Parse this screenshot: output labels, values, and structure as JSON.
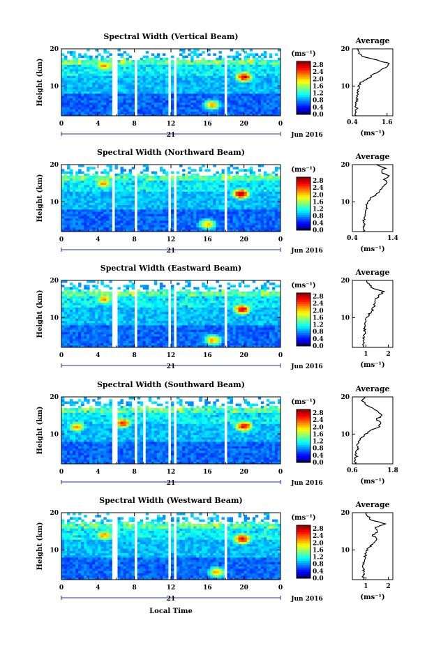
{
  "figure": {
    "date_label": "Jun 2016",
    "day_label": "21",
    "xlabel": "Local Time",
    "ylabel": "Height (km)",
    "unit_label": "(ms⁻¹)",
    "avg_title": "Average",
    "avg_xlabel": "(ms⁻¹)"
  },
  "chart_data": [
    {
      "type": "heatmap",
      "title": "Spectral Width (Vertical Beam)",
      "x_ticks": [
        "0",
        "4",
        "8",
        "12",
        "16",
        "20",
        "0"
      ],
      "xlim": [
        0,
        24
      ],
      "y_ticks": [
        "20",
        "10"
      ],
      "ylim": [
        2,
        20
      ],
      "colorbar": {
        "min": 0,
        "max": 3,
        "ticks": [
          "2.8",
          "2.4",
          "2.0",
          "1.6",
          "1.2",
          "0.8",
          "0.4",
          "0.0"
        ]
      },
      "gaps_hours": [
        [
          5.5,
          6.0
        ],
        [
          8.0,
          8.4
        ],
        [
          11.6,
          11.9
        ],
        [
          12.2,
          12.5
        ],
        [
          17.8,
          18.1
        ]
      ],
      "hotspots": [
        {
          "t": 20,
          "h": 12.5,
          "v": 2.6
        },
        {
          "t": 4.7,
          "h": 15.5,
          "v": 2.0
        },
        {
          "t": 16.5,
          "h": 5,
          "v": 1.9
        }
      ],
      "average": {
        "xlim": [
          0.4,
          1.8
        ],
        "x_ticks": [
          "0.4",
          "1.6"
        ],
        "y_ticks": [
          "20",
          "10"
        ],
        "height": [
          2,
          3,
          4,
          5,
          6,
          7,
          8,
          9,
          10,
          11,
          12,
          13,
          14,
          15,
          16,
          17,
          18,
          19,
          20
        ],
        "value": [
          0.52,
          0.5,
          0.55,
          0.5,
          0.54,
          0.58,
          0.56,
          0.6,
          0.62,
          0.7,
          0.95,
          1.1,
          1.35,
          1.55,
          1.7,
          1.25,
          0.75,
          0.6,
          0.55
        ]
      }
    },
    {
      "type": "heatmap",
      "title": "Spectral Width (Northward Beam)",
      "x_ticks": [
        "0",
        "4",
        "8",
        "12",
        "16",
        "20",
        "0"
      ],
      "xlim": [
        0,
        24
      ],
      "y_ticks": [
        "20",
        "10"
      ],
      "ylim": [
        2,
        20
      ],
      "colorbar": {
        "min": 0,
        "max": 3,
        "ticks": [
          "2.8",
          "2.4",
          "2.0",
          "1.6",
          "1.2",
          "0.8",
          "0.4",
          "0.0"
        ]
      },
      "gaps_hours": [
        [
          5.4,
          5.9
        ],
        [
          8.0,
          8.4
        ],
        [
          11.6,
          11.9
        ],
        [
          12.2,
          12.5
        ],
        [
          17.8,
          18.1
        ]
      ],
      "hotspots": [
        {
          "t": 19.7,
          "h": 12.2,
          "v": 2.8
        },
        {
          "t": 4.6,
          "h": 15,
          "v": 2.0
        },
        {
          "t": 16,
          "h": 4,
          "v": 1.9
        }
      ],
      "average": {
        "xlim": [
          0.4,
          1.4
        ],
        "x_ticks": [
          "0.4",
          "1.4"
        ],
        "y_ticks": [
          "20",
          "10"
        ],
        "height": [
          2,
          3,
          4,
          5,
          6,
          7,
          8,
          9,
          10,
          11,
          12,
          13,
          14,
          15,
          16,
          17,
          18,
          19,
          20
        ],
        "value": [
          0.68,
          0.66,
          0.7,
          0.68,
          0.72,
          0.7,
          0.74,
          0.76,
          0.78,
          0.86,
          1.0,
          1.08,
          1.15,
          1.25,
          1.2,
          1.3,
          1.1,
          1.2,
          1.0
        ]
      }
    },
    {
      "type": "heatmap",
      "title": "Spectral Width (Eastward Beam)",
      "x_ticks": [
        "0",
        "4",
        "8",
        "12",
        "16",
        "20",
        "0"
      ],
      "xlim": [
        0,
        24
      ],
      "y_ticks": [
        "20",
        "10"
      ],
      "ylim": [
        2,
        20
      ],
      "colorbar": {
        "min": 0,
        "max": 3,
        "ticks": [
          "2.8",
          "2.4",
          "2.0",
          "1.6",
          "1.2",
          "0.8",
          "0.4",
          "0.0"
        ]
      },
      "gaps_hours": [
        [
          5.5,
          6.0
        ],
        [
          8.0,
          8.4
        ],
        [
          11.6,
          11.9
        ],
        [
          12.2,
          12.5
        ],
        [
          17.8,
          18.1
        ]
      ],
      "hotspots": [
        {
          "t": 19.8,
          "h": 12.3,
          "v": 2.6
        },
        {
          "t": 4.7,
          "h": 15,
          "v": 2.0
        },
        {
          "t": 16.6,
          "h": 4,
          "v": 2.0
        }
      ],
      "average": {
        "xlim": [
          0.4,
          2.2
        ],
        "x_ticks": [
          "1",
          "2"
        ],
        "y_ticks": [
          "20",
          "10"
        ],
        "height": [
          2,
          3,
          4,
          5,
          6,
          7,
          8,
          9,
          10,
          11,
          12,
          13,
          14,
          15,
          16,
          17,
          18,
          19,
          20
        ],
        "value": [
          0.9,
          0.88,
          0.92,
          0.9,
          0.95,
          0.93,
          0.97,
          1.0,
          1.05,
          1.15,
          1.3,
          1.35,
          1.4,
          1.45,
          1.6,
          1.8,
          1.3,
          1.15,
          1.0
        ]
      }
    },
    {
      "type": "heatmap",
      "title": "Spectral Width (Southward Beam)",
      "x_ticks": [
        "0",
        "4",
        "8",
        "12",
        "16",
        "20",
        "0"
      ],
      "xlim": [
        0,
        24
      ],
      "y_ticks": [
        "20",
        "10"
      ],
      "ylim": [
        2,
        20
      ],
      "colorbar": {
        "min": 0,
        "max": 3,
        "ticks": [
          "2.8",
          "2.4",
          "2.0",
          "1.6",
          "1.2",
          "0.8",
          "0.4",
          "0.0"
        ]
      },
      "gaps_hours": [
        [
          5.5,
          6.0
        ],
        [
          8.0,
          8.4
        ],
        [
          8.9,
          9.2
        ],
        [
          11.6,
          11.9
        ],
        [
          12.2,
          12.5
        ],
        [
          17.8,
          18.1
        ]
      ],
      "hotspots": [
        {
          "t": 20,
          "h": 12.2,
          "v": 2.6
        },
        {
          "t": 6.7,
          "h": 13,
          "v": 2.4
        },
        {
          "t": 1.7,
          "h": 12,
          "v": 2.0
        }
      ],
      "average": {
        "xlim": [
          0.6,
          1.8
        ],
        "x_ticks": [
          "0.6",
          "1.8"
        ],
        "y_ticks": [
          "20",
          "10"
        ],
        "height": [
          2,
          3,
          4,
          5,
          6,
          7,
          8,
          9,
          10,
          11,
          12,
          13,
          14,
          15,
          16,
          17,
          18,
          19,
          20
        ],
        "value": [
          0.7,
          0.66,
          0.72,
          0.7,
          0.76,
          0.74,
          0.8,
          0.86,
          1.0,
          1.15,
          1.4,
          1.45,
          1.3,
          1.5,
          1.35,
          1.2,
          1.0,
          0.9,
          0.95
        ]
      }
    },
    {
      "type": "heatmap",
      "title": "Spectral Width (Westward Beam)",
      "x_ticks": [
        "0",
        "4",
        "8",
        "12",
        "16",
        "20",
        "0"
      ],
      "xlim": [
        0,
        24
      ],
      "y_ticks": [
        "20",
        "10"
      ],
      "ylim": [
        2,
        20
      ],
      "colorbar": {
        "min": 0,
        "max": 3,
        "ticks": [
          "2.8",
          "2.4",
          "2.0",
          "1.6",
          "1.2",
          "0.8",
          "0.4",
          "0.0"
        ]
      },
      "gaps_hours": [
        [
          5.5,
          6.0
        ],
        [
          8.0,
          8.4
        ],
        [
          11.6,
          11.9
        ],
        [
          12.2,
          12.5
        ],
        [
          17.8,
          18.1
        ]
      ],
      "hotspots": [
        {
          "t": 19.8,
          "h": 13,
          "v": 2.6
        },
        {
          "t": 4.7,
          "h": 14,
          "v": 2.0
        },
        {
          "t": 17,
          "h": 4,
          "v": 2.0
        }
      ],
      "average": {
        "xlim": [
          0.4,
          2.2
        ],
        "x_ticks": [
          "1",
          "2"
        ],
        "y_ticks": [
          "20",
          "10"
        ],
        "height": [
          2,
          3,
          4,
          5,
          6,
          7,
          8,
          9,
          10,
          11,
          12,
          13,
          14,
          15,
          16,
          17,
          18,
          19,
          20
        ],
        "value": [
          0.9,
          0.86,
          0.95,
          0.88,
          0.92,
          0.9,
          0.95,
          1.0,
          1.05,
          1.2,
          1.35,
          1.45,
          1.3,
          1.55,
          1.4,
          1.85,
          1.25,
          1.1,
          1.0
        ]
      }
    }
  ]
}
